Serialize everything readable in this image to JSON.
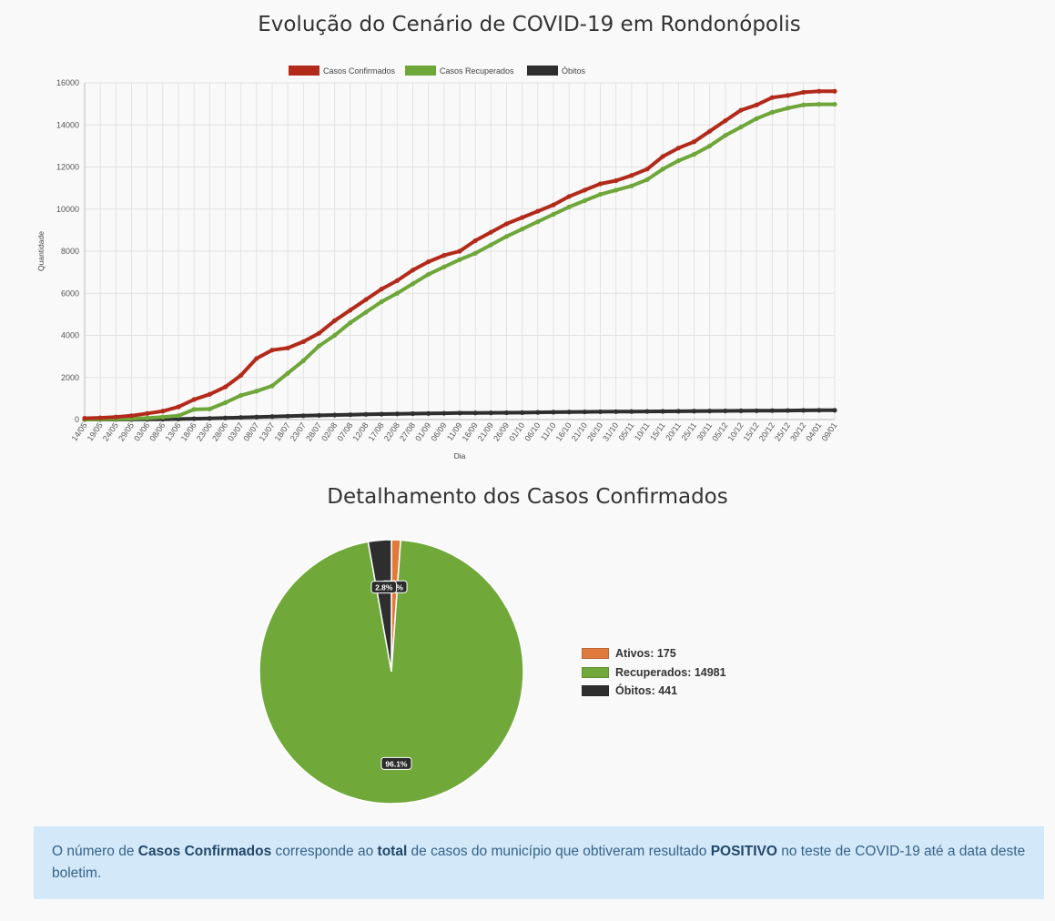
{
  "line_chart": {
    "title": "Evolução do Cenário de COVID-19 em Rondonópolis"
  },
  "pie_chart": {
    "title": "Detalhamento dos Casos Confirmados"
  },
  "info": {
    "t1": "O número de ",
    "b1": "Casos Confirmados",
    "t2": " corresponde ao ",
    "b2": "total",
    "t3": " de casos do município que obtiveram resultado ",
    "b3": "POSITIVO",
    "t4": " no teste de COVID-19 até a data deste boletim."
  },
  "chart_data": [
    {
      "type": "line",
      "title": "Evolução do Cenário de COVID-19 em Rondonópolis",
      "xlabel": "Dia",
      "ylabel": "Quantidade",
      "ylim": [
        0,
        16000
      ],
      "yticks": [
        0,
        2000,
        4000,
        6000,
        8000,
        10000,
        12000,
        14000,
        16000
      ],
      "legend_position": "top",
      "grid": true,
      "categories": [
        "14/05",
        "19/05",
        "24/05",
        "29/05",
        "03/06",
        "08/06",
        "13/06",
        "18/06",
        "23/06",
        "28/06",
        "03/07",
        "08/07",
        "13/07",
        "18/07",
        "23/07",
        "28/07",
        "02/08",
        "07/08",
        "12/08",
        "17/08",
        "22/08",
        "27/08",
        "01/09",
        "06/09",
        "11/09",
        "16/09",
        "21/09",
        "26/09",
        "01/10",
        "06/10",
        "11/10",
        "16/10",
        "21/10",
        "26/10",
        "31/10",
        "05/11",
        "10/11",
        "15/11",
        "20/11",
        "25/11",
        "30/11",
        "05/12",
        "10/12",
        "15/12",
        "20/12",
        "25/12",
        "30/12",
        "04/01",
        "09/01"
      ],
      "series": [
        {
          "name": "Casos Confirmados",
          "color": "#b22a1a",
          "values": [
            60,
            80,
            120,
            180,
            290,
            400,
            600,
            950,
            1200,
            1550,
            2100,
            2900,
            3300,
            3400,
            3700,
            4100,
            4700,
            5200,
            5700,
            6200,
            6600,
            7100,
            7500,
            7800,
            8000,
            8500,
            8900,
            9300,
            9600,
            9900,
            10200,
            10600,
            10900,
            11200,
            11350,
            11600,
            11900,
            12500,
            12900,
            13200,
            13700,
            14200,
            14700,
            14950,
            15300,
            15400,
            15550,
            15600,
            15600
          ]
        },
        {
          "name": "Casos Recuperados",
          "color": "#6fa63a",
          "values": [
            0,
            10,
            20,
            40,
            70,
            120,
            180,
            480,
            500,
            800,
            1150,
            1350,
            1600,
            2200,
            2800,
            3500,
            4000,
            4600,
            5100,
            5600,
            6000,
            6450,
            6900,
            7250,
            7600,
            7900,
            8300,
            8700,
            9050,
            9400,
            9750,
            10100,
            10400,
            10700,
            10900,
            11100,
            11400,
            11900,
            12300,
            12600,
            13000,
            13500,
            13900,
            14300,
            14600,
            14800,
            14950,
            14980,
            14981
          ]
        },
        {
          "name": "Óbitos",
          "color": "#2e2e2e",
          "values": [
            0,
            1,
            2,
            4,
            8,
            15,
            25,
            40,
            55,
            75,
            100,
            120,
            140,
            160,
            180,
            200,
            215,
            230,
            245,
            260,
            270,
            280,
            290,
            300,
            310,
            315,
            320,
            325,
            330,
            340,
            350,
            360,
            365,
            370,
            375,
            380,
            385,
            390,
            395,
            400,
            405,
            410,
            415,
            420,
            425,
            430,
            435,
            440,
            441
          ]
        }
      ]
    },
    {
      "type": "pie",
      "title": "Detalhamento dos Casos Confirmados",
      "legend_position": "right",
      "slices": [
        {
          "label": "Ativos: 175",
          "name": "Ativos",
          "value": 175,
          "percent_label": "1.1%",
          "color": "#e07a3c"
        },
        {
          "label": "Recuperados: 14981",
          "name": "Recuperados",
          "value": 14981,
          "percent_label": "96.1%",
          "color": "#70a83a"
        },
        {
          "label": "Óbitos: 441",
          "name": "Óbitos",
          "value": 441,
          "percent_label": "2.8%",
          "color": "#2e2e2e"
        }
      ]
    }
  ]
}
